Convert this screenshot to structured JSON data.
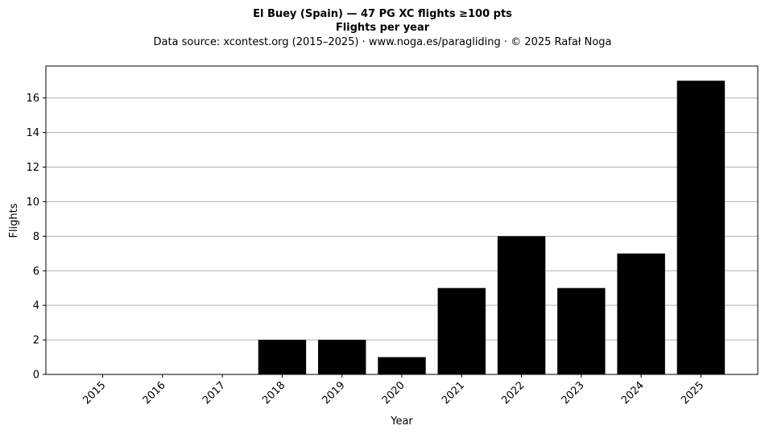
{
  "chart_data": {
    "type": "bar",
    "title": "El Buey (Spain)  —  47 PG XC flights ≥100 pts",
    "title_line2": "Flights per year",
    "subtitle": "Data source: xcontest.org (2015–2025)  ·  www.noga.es/paragliding  ·  © 2025 Rafał Noga",
    "xlabel": "Year",
    "ylabel": "Flights",
    "categories": [
      "2015",
      "2016",
      "2017",
      "2018",
      "2019",
      "2020",
      "2021",
      "2022",
      "2023",
      "2024",
      "2025"
    ],
    "values": [
      0,
      0,
      0,
      2,
      2,
      1,
      5,
      8,
      5,
      7,
      17
    ],
    "ylim": [
      0,
      17.85
    ],
    "yticks": [
      0,
      2,
      4,
      6,
      8,
      10,
      12,
      14,
      16
    ],
    "grid": "y-major",
    "bar_color": "#000000",
    "grid_color": "#b0b0b0"
  }
}
